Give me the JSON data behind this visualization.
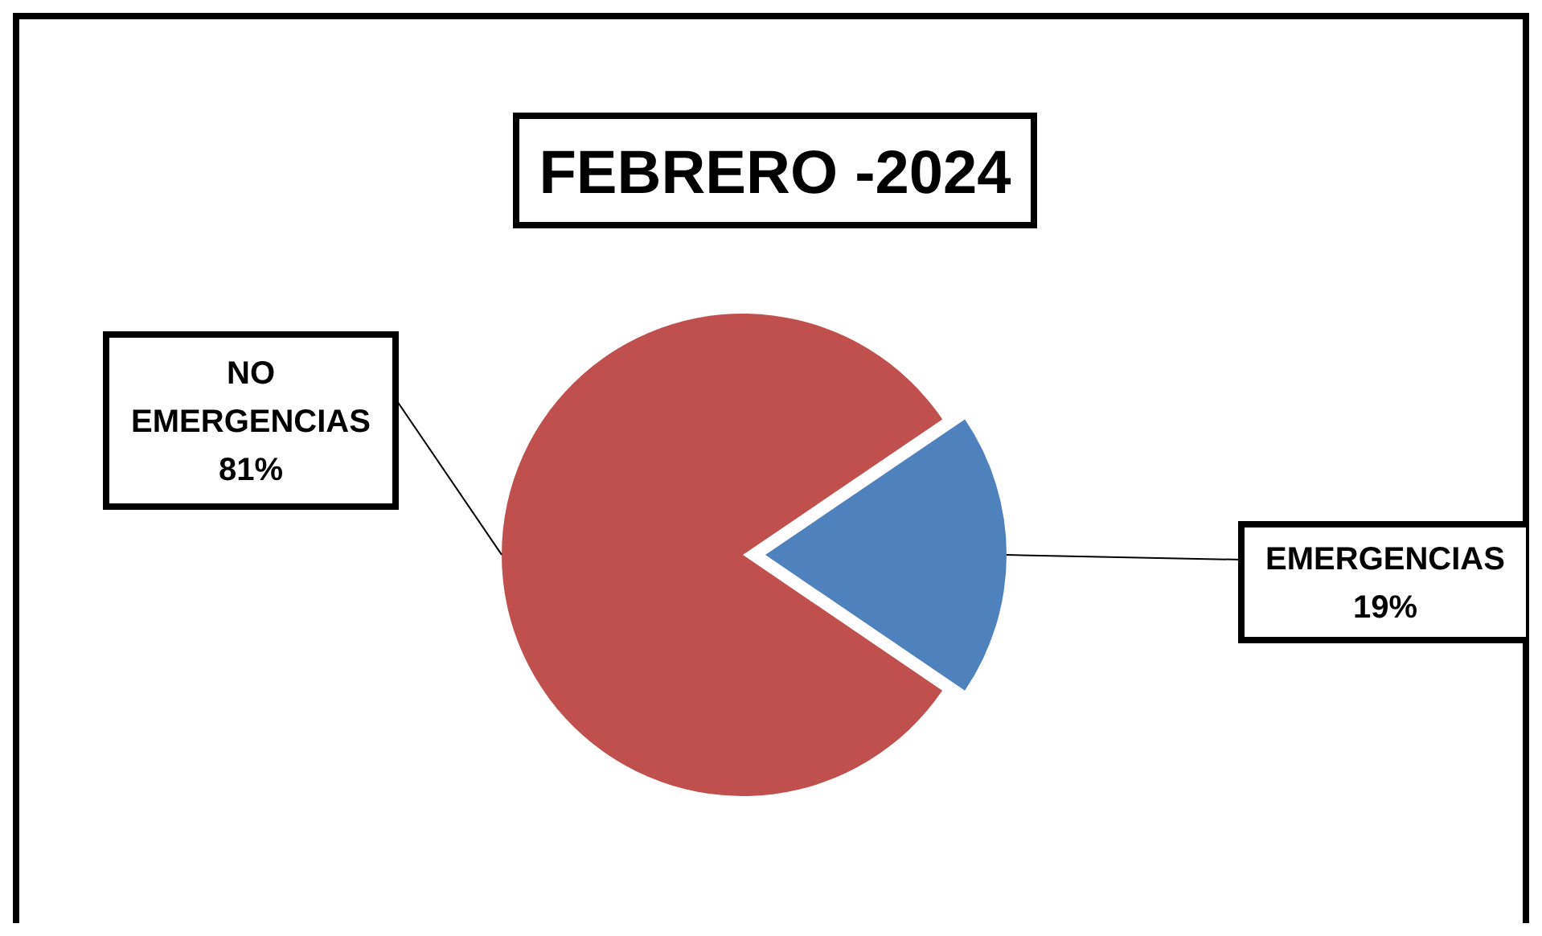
{
  "chart_data": {
    "type": "pie",
    "title": "FEBRERO -2024",
    "categories": [
      "NO EMERGENCIAS",
      "EMERGENCIAS"
    ],
    "values": [
      81,
      19
    ],
    "colors": [
      "#c0504d",
      "#4f81bd"
    ],
    "value_labels": [
      "81%",
      "19%"
    ]
  }
}
